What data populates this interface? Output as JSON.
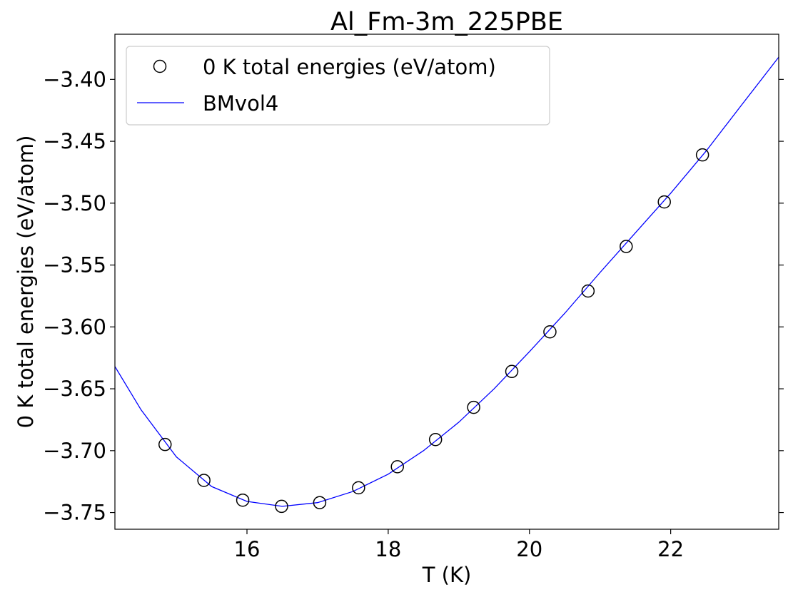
{
  "chart_data": {
    "type": "scatter",
    "title": "Al_Fm-3m_225PBE",
    "xlabel": "T (K)",
    "ylabel": "0 K total energies (eV/atom)",
    "xlim": [
      14.13,
      23.53
    ],
    "ylim": [
      -3.7635,
      -3.3635
    ],
    "xticks": [
      16,
      18,
      20,
      22
    ],
    "xtick_labels": [
      "16",
      "18",
      "20",
      "22"
    ],
    "yticks": [
      -3.75,
      -3.7,
      -3.65,
      -3.6,
      -3.55,
      -3.5,
      -3.45,
      -3.4
    ],
    "ytick_labels": [
      "−3.75",
      "−3.70",
      "−3.65",
      "−3.60",
      "−3.55",
      "−3.50",
      "−3.45",
      "−3.40"
    ],
    "grid": false,
    "legend_position": "top-left",
    "series": [
      {
        "name": "0 K total energies (eV/atom)",
        "kind": "scatter",
        "marker": "open-circle",
        "color": "#000000",
        "x": [
          14.84,
          15.39,
          15.94,
          16.49,
          17.03,
          17.58,
          18.13,
          18.67,
          19.21,
          19.75,
          20.29,
          20.83,
          21.37,
          21.91,
          22.45
        ],
        "y": [
          -3.695,
          -3.724,
          -3.74,
          -3.745,
          -3.742,
          -3.73,
          -3.713,
          -3.691,
          -3.665,
          -3.636,
          -3.604,
          -3.571,
          -3.535,
          -3.499,
          -3.461
        ]
      },
      {
        "name": "BMvol4",
        "kind": "line",
        "color": "#0000ff",
        "x": [
          14.13,
          14.5,
          15.0,
          15.5,
          16.0,
          16.5,
          17.0,
          17.5,
          18.0,
          18.5,
          19.0,
          19.5,
          20.0,
          20.5,
          21.0,
          21.5,
          22.0,
          22.5,
          23.0,
          23.53
        ],
        "y": [
          -3.632,
          -3.667,
          -3.705,
          -3.729,
          -3.741,
          -3.745,
          -3.742,
          -3.733,
          -3.719,
          -3.7,
          -3.677,
          -3.65,
          -3.62,
          -3.589,
          -3.556,
          -3.524,
          -3.492,
          -3.458,
          -3.421,
          -3.382
        ]
      }
    ]
  }
}
